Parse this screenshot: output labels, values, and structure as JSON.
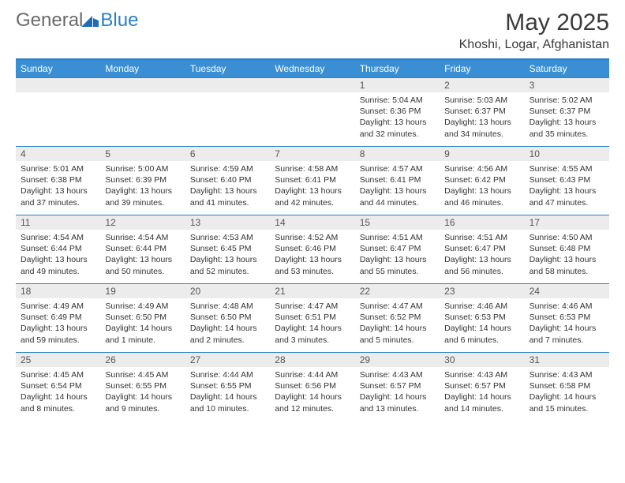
{
  "logo": {
    "general": "General",
    "blue": "Blue"
  },
  "title": "May 2025",
  "location": "Khoshi, Logar, Afghanistan",
  "colors": {
    "headerBar": "#3a8fd4",
    "ruleLine": "#2a7fc9",
    "dayNumBg": "#ececec",
    "text": "#333333"
  },
  "weekdays": [
    "Sunday",
    "Monday",
    "Tuesday",
    "Wednesday",
    "Thursday",
    "Friday",
    "Saturday"
  ],
  "weeks": [
    [
      {
        "n": "",
        "sr": "",
        "ss": "",
        "dl": ""
      },
      {
        "n": "",
        "sr": "",
        "ss": "",
        "dl": ""
      },
      {
        "n": "",
        "sr": "",
        "ss": "",
        "dl": ""
      },
      {
        "n": "",
        "sr": "",
        "ss": "",
        "dl": ""
      },
      {
        "n": "1",
        "sr": "Sunrise: 5:04 AM",
        "ss": "Sunset: 6:36 PM",
        "dl": "Daylight: 13 hours and 32 minutes."
      },
      {
        "n": "2",
        "sr": "Sunrise: 5:03 AM",
        "ss": "Sunset: 6:37 PM",
        "dl": "Daylight: 13 hours and 34 minutes."
      },
      {
        "n": "3",
        "sr": "Sunrise: 5:02 AM",
        "ss": "Sunset: 6:37 PM",
        "dl": "Daylight: 13 hours and 35 minutes."
      }
    ],
    [
      {
        "n": "4",
        "sr": "Sunrise: 5:01 AM",
        "ss": "Sunset: 6:38 PM",
        "dl": "Daylight: 13 hours and 37 minutes."
      },
      {
        "n": "5",
        "sr": "Sunrise: 5:00 AM",
        "ss": "Sunset: 6:39 PM",
        "dl": "Daylight: 13 hours and 39 minutes."
      },
      {
        "n": "6",
        "sr": "Sunrise: 4:59 AM",
        "ss": "Sunset: 6:40 PM",
        "dl": "Daylight: 13 hours and 41 minutes."
      },
      {
        "n": "7",
        "sr": "Sunrise: 4:58 AM",
        "ss": "Sunset: 6:41 PM",
        "dl": "Daylight: 13 hours and 42 minutes."
      },
      {
        "n": "8",
        "sr": "Sunrise: 4:57 AM",
        "ss": "Sunset: 6:41 PM",
        "dl": "Daylight: 13 hours and 44 minutes."
      },
      {
        "n": "9",
        "sr": "Sunrise: 4:56 AM",
        "ss": "Sunset: 6:42 PM",
        "dl": "Daylight: 13 hours and 46 minutes."
      },
      {
        "n": "10",
        "sr": "Sunrise: 4:55 AM",
        "ss": "Sunset: 6:43 PM",
        "dl": "Daylight: 13 hours and 47 minutes."
      }
    ],
    [
      {
        "n": "11",
        "sr": "Sunrise: 4:54 AM",
        "ss": "Sunset: 6:44 PM",
        "dl": "Daylight: 13 hours and 49 minutes."
      },
      {
        "n": "12",
        "sr": "Sunrise: 4:54 AM",
        "ss": "Sunset: 6:44 PM",
        "dl": "Daylight: 13 hours and 50 minutes."
      },
      {
        "n": "13",
        "sr": "Sunrise: 4:53 AM",
        "ss": "Sunset: 6:45 PM",
        "dl": "Daylight: 13 hours and 52 minutes."
      },
      {
        "n": "14",
        "sr": "Sunrise: 4:52 AM",
        "ss": "Sunset: 6:46 PM",
        "dl": "Daylight: 13 hours and 53 minutes."
      },
      {
        "n": "15",
        "sr": "Sunrise: 4:51 AM",
        "ss": "Sunset: 6:47 PM",
        "dl": "Daylight: 13 hours and 55 minutes."
      },
      {
        "n": "16",
        "sr": "Sunrise: 4:51 AM",
        "ss": "Sunset: 6:47 PM",
        "dl": "Daylight: 13 hours and 56 minutes."
      },
      {
        "n": "17",
        "sr": "Sunrise: 4:50 AM",
        "ss": "Sunset: 6:48 PM",
        "dl": "Daylight: 13 hours and 58 minutes."
      }
    ],
    [
      {
        "n": "18",
        "sr": "Sunrise: 4:49 AM",
        "ss": "Sunset: 6:49 PM",
        "dl": "Daylight: 13 hours and 59 minutes."
      },
      {
        "n": "19",
        "sr": "Sunrise: 4:49 AM",
        "ss": "Sunset: 6:50 PM",
        "dl": "Daylight: 14 hours and 1 minute."
      },
      {
        "n": "20",
        "sr": "Sunrise: 4:48 AM",
        "ss": "Sunset: 6:50 PM",
        "dl": "Daylight: 14 hours and 2 minutes."
      },
      {
        "n": "21",
        "sr": "Sunrise: 4:47 AM",
        "ss": "Sunset: 6:51 PM",
        "dl": "Daylight: 14 hours and 3 minutes."
      },
      {
        "n": "22",
        "sr": "Sunrise: 4:47 AM",
        "ss": "Sunset: 6:52 PM",
        "dl": "Daylight: 14 hours and 5 minutes."
      },
      {
        "n": "23",
        "sr": "Sunrise: 4:46 AM",
        "ss": "Sunset: 6:53 PM",
        "dl": "Daylight: 14 hours and 6 minutes."
      },
      {
        "n": "24",
        "sr": "Sunrise: 4:46 AM",
        "ss": "Sunset: 6:53 PM",
        "dl": "Daylight: 14 hours and 7 minutes."
      }
    ],
    [
      {
        "n": "25",
        "sr": "Sunrise: 4:45 AM",
        "ss": "Sunset: 6:54 PM",
        "dl": "Daylight: 14 hours and 8 minutes."
      },
      {
        "n": "26",
        "sr": "Sunrise: 4:45 AM",
        "ss": "Sunset: 6:55 PM",
        "dl": "Daylight: 14 hours and 9 minutes."
      },
      {
        "n": "27",
        "sr": "Sunrise: 4:44 AM",
        "ss": "Sunset: 6:55 PM",
        "dl": "Daylight: 14 hours and 10 minutes."
      },
      {
        "n": "28",
        "sr": "Sunrise: 4:44 AM",
        "ss": "Sunset: 6:56 PM",
        "dl": "Daylight: 14 hours and 12 minutes."
      },
      {
        "n": "29",
        "sr": "Sunrise: 4:43 AM",
        "ss": "Sunset: 6:57 PM",
        "dl": "Daylight: 14 hours and 13 minutes."
      },
      {
        "n": "30",
        "sr": "Sunrise: 4:43 AM",
        "ss": "Sunset: 6:57 PM",
        "dl": "Daylight: 14 hours and 14 minutes."
      },
      {
        "n": "31",
        "sr": "Sunrise: 4:43 AM",
        "ss": "Sunset: 6:58 PM",
        "dl": "Daylight: 14 hours and 15 minutes."
      }
    ]
  ]
}
